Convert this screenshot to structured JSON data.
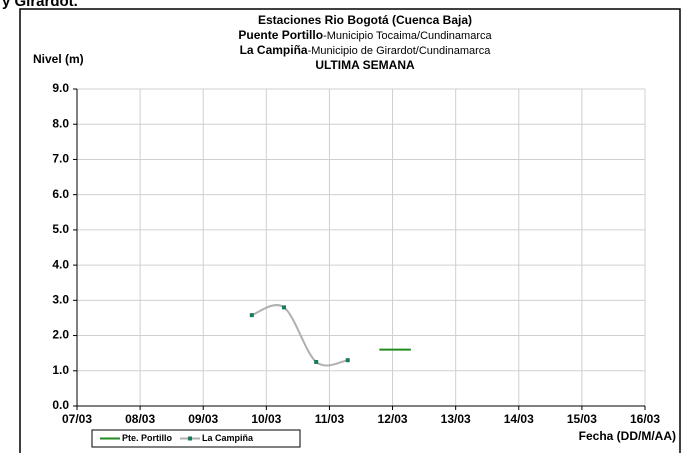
{
  "top_text": "y Girardot.",
  "chart_data": {
    "type": "line",
    "title": "Estaciones Rio Bogotá (Cuenca Baja)",
    "subtitles": [
      {
        "name": "Puente Portillo",
        "text": "-Municipio Tocaima/Cundinamarca"
      },
      {
        "name": "La Campiña",
        "text": "-Municipio de Girardot/Cundinamarca"
      }
    ],
    "period": "ULTIMA SEMANA",
    "y_label": "Nivel (m)",
    "x_label": "Fecha (DD/M/AA)",
    "xlim": [
      7,
      16
    ],
    "xticks": [
      {
        "value": 7,
        "label": "07/03"
      },
      {
        "value": 8,
        "label": "08/03"
      },
      {
        "value": 9,
        "label": "09/03"
      },
      {
        "value": 10,
        "label": "10/03"
      },
      {
        "value": 11,
        "label": "11/03"
      },
      {
        "value": 12,
        "label": "12/03"
      },
      {
        "value": 13,
        "label": "13/03"
      },
      {
        "value": 14,
        "label": "14/03"
      },
      {
        "value": 15,
        "label": "15/03"
      },
      {
        "value": 16,
        "label": "16/03"
      }
    ],
    "ylim": [
      0,
      9
    ],
    "yticks": [
      {
        "value": 0,
        "label": "0.0"
      },
      {
        "value": 1,
        "label": "1.0"
      },
      {
        "value": 2,
        "label": "2.0"
      },
      {
        "value": 3,
        "label": "3.0"
      },
      {
        "value": 4,
        "label": "4.0"
      },
      {
        "value": 5,
        "label": "5.0"
      },
      {
        "value": 6,
        "label": "6.0"
      },
      {
        "value": 7,
        "label": "7.0"
      },
      {
        "value": 8,
        "label": "8.0"
      },
      {
        "value": 9,
        "label": "9.0"
      }
    ],
    "grid": true,
    "series": [
      {
        "name": "Pte. Portillo",
        "color": "#228b22",
        "smooth": false,
        "markers": false,
        "x": [
          11.79,
          12.29
        ],
        "values": [
          1.6,
          1.6
        ]
      },
      {
        "name": "La Campiña",
        "color": "#b0b0b0",
        "marker_color": "#1a7a5a",
        "smooth": true,
        "markers": true,
        "x": [
          9.77,
          10.28,
          10.79,
          11.29
        ],
        "values": [
          2.58,
          2.8,
          1.25,
          1.3
        ]
      }
    ]
  }
}
